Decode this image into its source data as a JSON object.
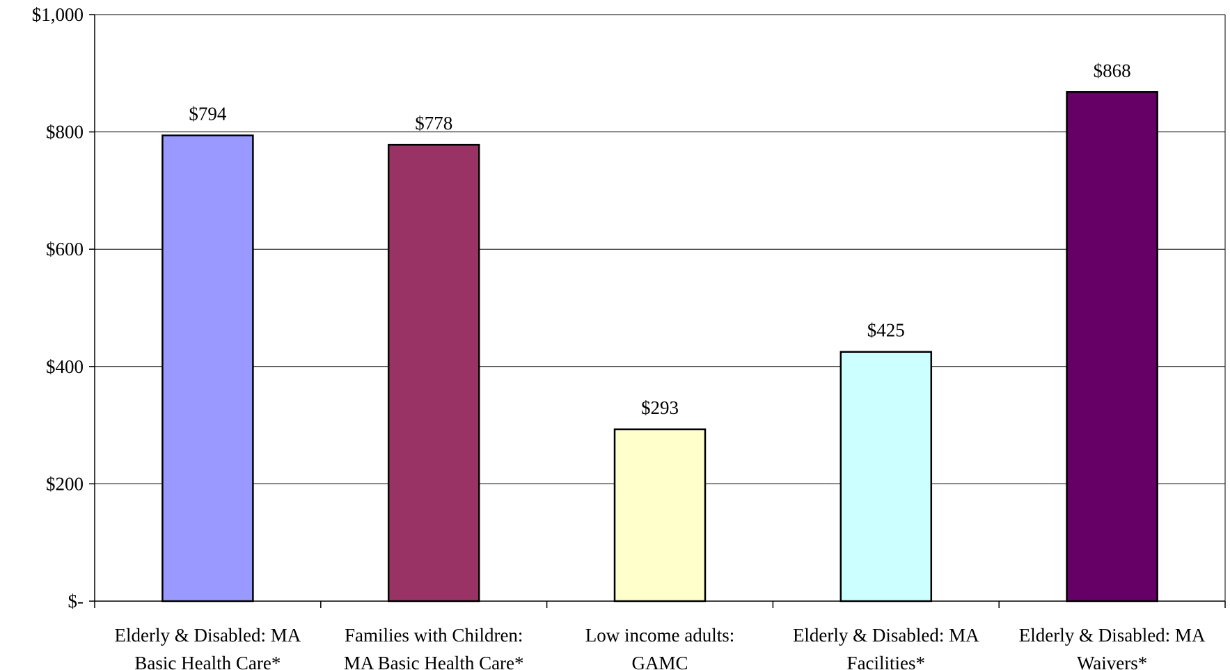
{
  "chart_data": {
    "type": "bar",
    "categories": [
      [
        "Elderly & Disabled: MA",
        "Basic Health Care*"
      ],
      [
        "Families with Children:",
        "MA Basic Health Care*"
      ],
      [
        "Low income adults:",
        "GAMC"
      ],
      [
        "Elderly & Disabled: MA",
        "Facilities*"
      ],
      [
        "Elderly & Disabled: MA",
        "Waivers*"
      ]
    ],
    "values": [
      794,
      778,
      293,
      425,
      868
    ],
    "data_labels": [
      "$794",
      "$778",
      "$293",
      "$425",
      "$868"
    ],
    "bar_colors": [
      "#9999FF",
      "#993366",
      "#FFFFCC",
      "#CCFFFF",
      "#660066"
    ],
    "yticks": [
      0,
      200,
      400,
      600,
      800,
      1000
    ],
    "ytick_labels": [
      "$-",
      "$200",
      "$400",
      "$600",
      "$800",
      "$1,000"
    ],
    "ylim": [
      0,
      1000
    ],
    "grid": true,
    "title": "",
    "xlabel": "",
    "ylabel": ""
  }
}
